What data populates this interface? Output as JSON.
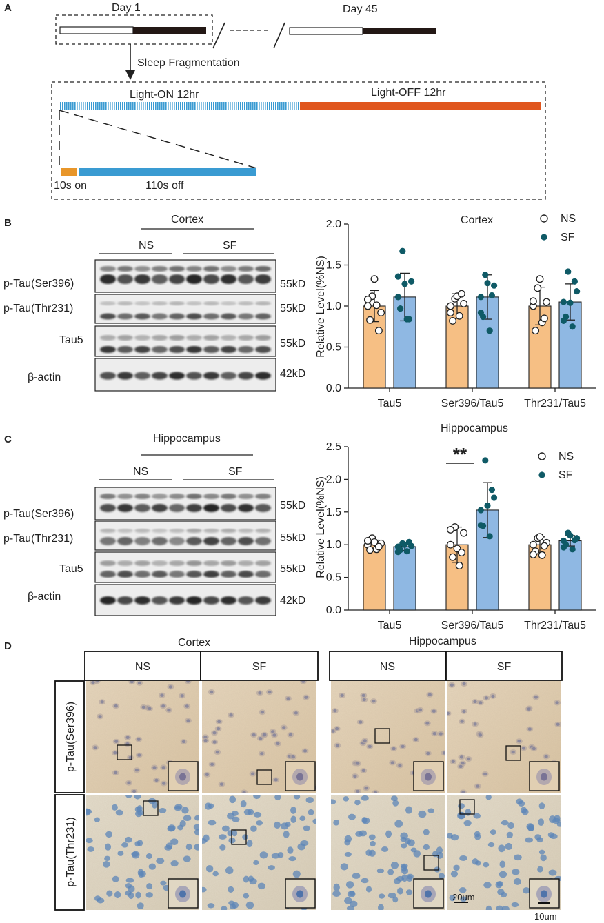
{
  "panels": {
    "a": "A",
    "b": "B",
    "c": "C",
    "d": "D"
  },
  "panel_a": {
    "day_start": "Day 1",
    "day_end": "Day 45",
    "protocol": "Sleep Fragmentation",
    "light_on": "Light-ON 12hr",
    "light_off": "Light-OFF 12hr",
    "on_label": "10s on",
    "off_label": "110s off",
    "colors": {
      "light_on": "#3a9bd2",
      "light_off": "#e0561e",
      "on": "#e8962a",
      "off": "#3a9bd2"
    }
  },
  "blots": {
    "b": {
      "region": "Cortex",
      "groups": [
        "NS",
        "SF"
      ],
      "rows": [
        {
          "label": "p-Tau(Ser396)",
          "kd": "55kD"
        },
        {
          "label": "p-Tau(Thr231)",
          "kd": "55kD"
        },
        {
          "label": "Tau5",
          "kd": "55kD"
        },
        {
          "label": "β-actin",
          "kd": "42kD"
        }
      ]
    },
    "c": {
      "region": "Hippocampus",
      "groups": [
        "NS",
        "SF"
      ],
      "rows": [
        {
          "label": "p-Tau(Ser396)",
          "kd": "55kD"
        },
        {
          "label": "p-Tau(Thr231)",
          "kd": "55kD"
        },
        {
          "label": "Tau5",
          "kd": "55kD"
        },
        {
          "label": "β-actin",
          "kd": "42kD"
        }
      ]
    }
  },
  "chart_data": [
    {
      "type": "bar",
      "title": "Cortex",
      "ylabel": "Relative Level(%NS)",
      "ylim": [
        0,
        2.0
      ],
      "yticks": [
        "0.0",
        "0.5",
        "1.0",
        "1.5",
        "2.0"
      ],
      "categories": [
        "Tau5",
        "Ser396/Tau5",
        "Thr231/Tau5"
      ],
      "legend": [
        "NS",
        "SF"
      ],
      "significance": [],
      "colors": {
        "NS": "#f6bf84",
        "SF": "#8fb8e3",
        "dot_SF": "#0f5a66"
      },
      "series": [
        {
          "name": "NS",
          "values": [
            1.0,
            1.0,
            1.0
          ],
          "sd": [
            0.19,
            0.15,
            0.23
          ],
          "points": [
            [
              1.0,
              1.12,
              1.01,
              0.92,
              0.83,
              1.33,
              0.7,
              1.08
            ],
            [
              1.0,
              1.09,
              0.88,
              1.03,
              0.82,
              1.12,
              1.15,
              0.92
            ],
            [
              1.0,
              1.22,
              0.8,
              1.05,
              0.7,
              1.33,
              0.85,
              1.06
            ]
          ]
        },
        {
          "name": "SF",
          "values": [
            1.11,
            1.11,
            1.05
          ],
          "sd": [
            0.29,
            0.27,
            0.22
          ],
          "points": [
            [
              1.11,
              1.67,
              0.84,
              1.3,
              0.97,
              1.27,
              0.84,
              1.36
            ],
            [
              1.11,
              1.38,
              0.7,
              1.25,
              0.87,
              1.28,
              1.13,
              0.92
            ],
            [
              1.05,
              1.42,
              0.75,
              1.18,
              0.87,
              1.04,
              1.3,
              0.82
            ]
          ]
        }
      ]
    },
    {
      "type": "bar",
      "title": "Hippocampus",
      "ylabel": "Relative Level(%NS)",
      "ylim": [
        0,
        2.5
      ],
      "yticks": [
        "0.0",
        "0.5",
        "1.0",
        "1.5",
        "2.0",
        "2.5"
      ],
      "categories": [
        "Tau5",
        "Ser396/Tau5",
        "Thr231/Tau5"
      ],
      "legend": [
        "NS",
        "SF"
      ],
      "significance": [
        {
          "category": "Ser396/Tau5",
          "label": "**"
        }
      ],
      "colors": {
        "NS": "#f6bf84",
        "SF": "#8fb8e3",
        "dot_SF": "#0f5a66"
      },
      "series": [
        {
          "name": "NS",
          "values": [
            1.0,
            1.0,
            1.0
          ],
          "sd": [
            0.07,
            0.27,
            0.12
          ],
          "points": [
            [
              1.0,
              1.1,
              0.93,
              1.02,
              0.92,
              1.04,
              0.97,
              1.06
            ],
            [
              1.0,
              1.27,
              0.68,
              1.18,
              0.81,
              0.94,
              0.88,
              1.23
            ],
            [
              1.0,
              1.1,
              0.84,
              1.03,
              0.9,
              1.12,
              0.98,
              0.85
            ]
          ]
        },
        {
          "name": "SF",
          "values": [
            0.97,
            1.53,
            1.06
          ],
          "sd": [
            0.06,
            0.42,
            0.08
          ],
          "points": [
            [
              0.97,
              1.02,
              0.9,
              0.98,
              0.92,
              1.0,
              1.04,
              0.89
            ],
            [
              1.53,
              2.29,
              1.13,
              1.72,
              1.29,
              1.6,
              1.84,
              1.3
            ],
            [
              1.06,
              1.18,
              0.93,
              1.1,
              1.0,
              1.14,
              1.07,
              0.96
            ]
          ]
        }
      ]
    }
  ],
  "panel_d": {
    "regions": [
      "Cortex",
      "Hippocampus"
    ],
    "groups": [
      "NS",
      "SF"
    ],
    "rows": [
      "p-Tau(Ser396)",
      "p-Tau(Thr231)"
    ],
    "scale_large": "20um",
    "scale_small": "10um"
  }
}
